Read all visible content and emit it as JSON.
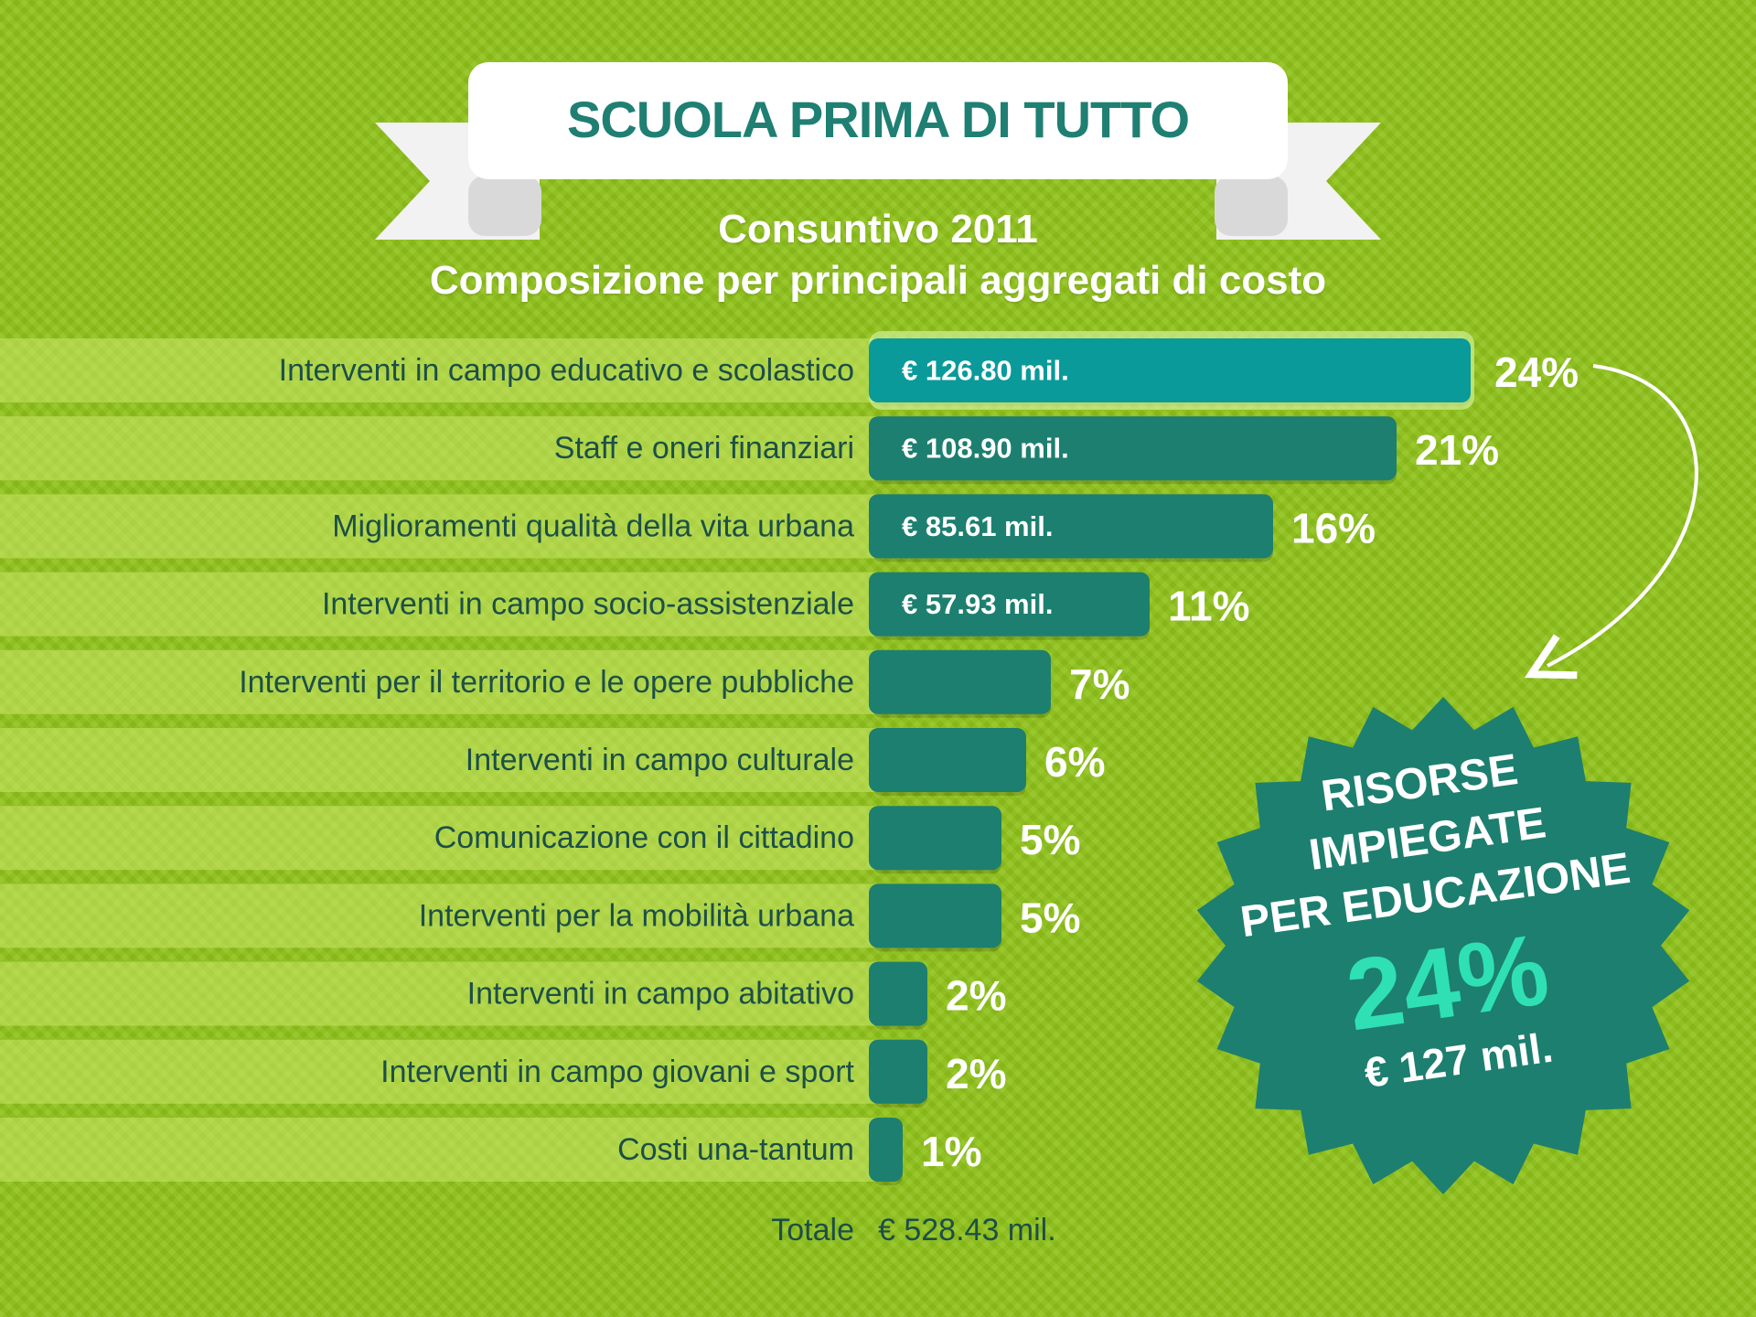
{
  "header": {
    "title": "SCUOLA PRIMA DI TUTTO",
    "subtitle_line1": "Consuntivo 2011",
    "subtitle_line2": "Composizione per principali aggregati di costo"
  },
  "colors": {
    "background": "#8fc21a",
    "bar": "#1d7f6f",
    "bar_highlight": "#0a9a9a",
    "title": "#1f7f72",
    "label": "#1c4f48",
    "badge": "#1d7f6f",
    "badge_percent": "#2fe0b5"
  },
  "chart_data": {
    "type": "bar",
    "orientation": "horizontal",
    "categories": [
      "Interventi in campo educativo e scolastico",
      "Staff e oneri finanziari",
      "Miglioramenti qualità della vita urbana",
      "Interventi in campo socio-assistenziale",
      "Interventi per il territorio e le opere pubbliche",
      "Interventi in campo culturale",
      "Comunicazione con il cittadino",
      "Interventi per la mobilità urbana",
      "Interventi in campo abitativo",
      "Interventi in campo giovani e sport",
      "Costi una-tantum"
    ],
    "values": [
      24,
      21,
      16,
      11,
      7,
      6,
      5,
      5,
      2,
      2,
      1
    ],
    "percent_labels": [
      "24%",
      "21%",
      "16%",
      "11%",
      "7%",
      "6%",
      "5%",
      "5%",
      "2%",
      "2%",
      "1%"
    ],
    "value_labels": [
      "€ 126.80 mil.",
      "€ 108.90 mil.",
      "€ 85.61 mil.",
      "€ 57.93 mil.",
      "",
      "",
      "",
      "",
      "",
      "",
      ""
    ],
    "highlight_index": 0,
    "total_label": "Totale",
    "total_value": "€ 528.43 mil."
  },
  "badge": {
    "line1": "RISORSE",
    "line2": "IMPIEGATE",
    "line3": "PER EDUCAZIONE",
    "percent": "24%",
    "amount": "€ 127 mil."
  }
}
